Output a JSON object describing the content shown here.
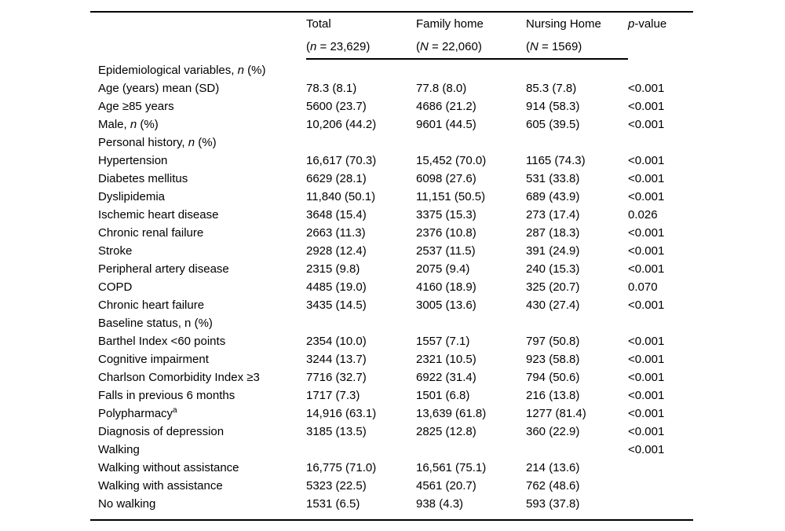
{
  "document": {
    "background_color": "#ffffff",
    "text_color": "#000000",
    "rule_color": "#000000"
  },
  "table": {
    "header": {
      "total_label": "Total",
      "total_sub_pre": "(",
      "total_sub_it": "n",
      "total_sub_post": " = 23,629)",
      "family_label": "Family home",
      "family_sub_pre": "(",
      "family_sub_it": "N",
      "family_sub_post": " = 22,060)",
      "nursing_label": "Nursing Home",
      "nursing_sub_pre": "(",
      "nursing_sub_it": "N",
      "nursing_sub_post": " = 1569)",
      "p_it": "p",
      "p_post": "-value"
    },
    "rows": [
      {
        "pre": "Epidemiological variables, ",
        "it": "n",
        "post": " (%)"
      },
      {
        "pre": "Age (years) mean (SD)",
        "total": "78.3 (8.1)",
        "family": "77.8 (8.0)",
        "nursing": "85.3 (7.8)",
        "p": "<0.001"
      },
      {
        "pre": "Age ≥85 years",
        "total": "5600 (23.7)",
        "family": "4686 (21.2)",
        "nursing": "914 (58.3)",
        "p": "<0.001"
      },
      {
        "pre": "Male, ",
        "it": "n",
        "post": " (%)",
        "total": "10,206 (44.2)",
        "family": "9601 (44.5)",
        "nursing": "605 (39.5)",
        "p": "<0.001"
      },
      {
        "pre": "Personal history, ",
        "it": "n",
        "post": " (%)"
      },
      {
        "pre": "Hypertension",
        "total": "16,617 (70.3)",
        "family": "15,452 (70.0)",
        "nursing": "1165 (74.3)",
        "p": "<0.001"
      },
      {
        "pre": "Diabetes mellitus",
        "total": "6629 (28.1)",
        "family": "6098 (27.6)",
        "nursing": "531 (33.8)",
        "p": "<0.001"
      },
      {
        "pre": "Dyslipidemia",
        "total": "11,840 (50.1)",
        "family": "11,151 (50.5)",
        "nursing": "689 (43.9)",
        "p": "<0.001"
      },
      {
        "pre": "Ischemic heart disease",
        "total": "3648 (15.4)",
        "family": "3375 (15.3)",
        "nursing": "273 (17.4)",
        "p": "0.026"
      },
      {
        "pre": "Chronic renal failure",
        "total": "2663 (11.3)",
        "family": "2376 (10.8)",
        "nursing": "287 (18.3)",
        "p": "<0.001"
      },
      {
        "pre": "Stroke",
        "total": "2928 (12.4)",
        "family": "2537 (11.5)",
        "nursing": "391 (24.9)",
        "p": "<0.001"
      },
      {
        "pre": "Peripheral artery disease",
        "total": "2315 (9.8)",
        "family": "2075 (9.4)",
        "nursing": "240 (15.3)",
        "p": "<0.001"
      },
      {
        "pre": "COPD",
        "total": "4485 (19.0)",
        "family": "4160 (18.9)",
        "nursing": "325 (20.7)",
        "p": "0.070"
      },
      {
        "pre": "Chronic heart failure",
        "total": "3435 (14.5)",
        "family": "3005 (13.6)",
        "nursing": "430 (27.4)",
        "p": "<0.001"
      },
      {
        "pre": "Baseline status, n (%)"
      },
      {
        "pre": "Barthel Index <60 points",
        "total": "2354 (10.0)",
        "family": "1557 (7.1)",
        "nursing": "797 (50.8)",
        "p": "<0.001"
      },
      {
        "pre": "Cognitive impairment",
        "total": "3244 (13.7)",
        "family": "2321 (10.5)",
        "nursing": "923 (58.8)",
        "p": "<0.001"
      },
      {
        "pre": "Charlson Comorbidity Index ≥3",
        "total": "7716 (32.7)",
        "family": "6922 (31.4)",
        "nursing": "794 (50.6)",
        "p": "<0.001"
      },
      {
        "pre": "Falls in previous 6 months",
        "total": "1717 (7.3)",
        "family": "1501 (6.8)",
        "nursing": "216 (13.8)",
        "p": "<0.001"
      },
      {
        "pre": "Polypharmacy",
        "sup": "a",
        "total": "14,916 (63.1)",
        "family": "13,639 (61.8)",
        "nursing": "1277 (81.4)",
        "p": "<0.001"
      },
      {
        "pre": "Diagnosis of depression",
        "total": "3185 (13.5)",
        "family": "2825 (12.8)",
        "nursing": "360 (22.9)",
        "p": "<0.001"
      },
      {
        "pre": "Walking",
        "p": "<0.001"
      },
      {
        "pre": "Walking without assistance",
        "total": "16,775 (71.0)",
        "family": "16,561 (75.1)",
        "nursing": "214 (13.6)"
      },
      {
        "pre": "Walking with assistance",
        "total": "5323 (22.5)",
        "family": "4561 (20.7)",
        "nursing": "762 (48.6)"
      },
      {
        "pre": "No walking",
        "total": "1531 (6.5)",
        "family": "938 (4.3)",
        "nursing": "593 (37.8)"
      }
    ]
  }
}
